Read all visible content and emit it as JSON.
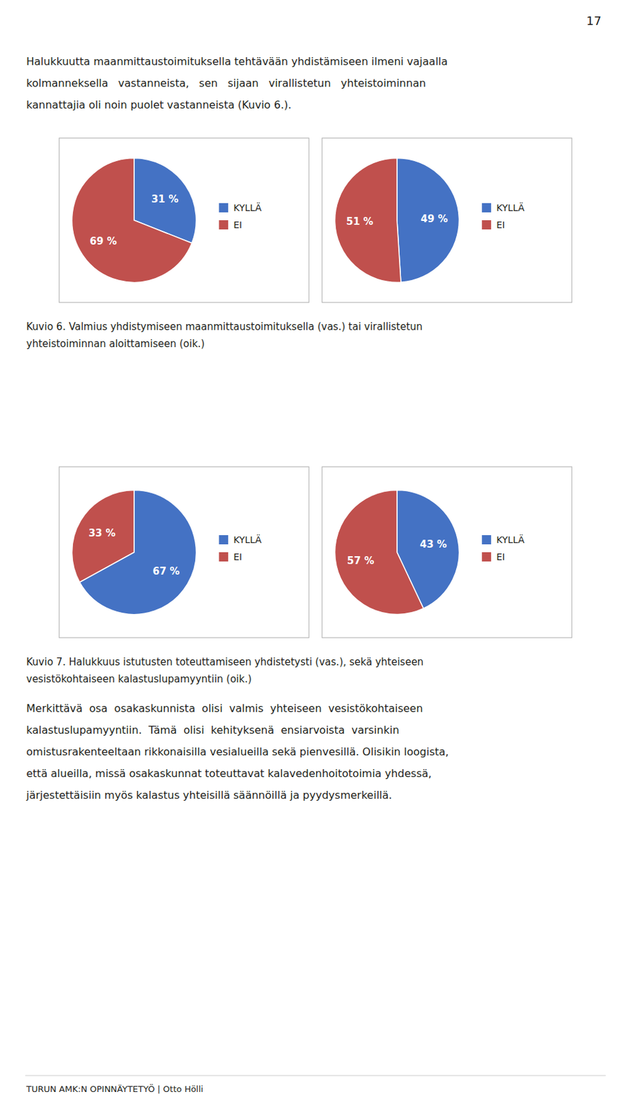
{
  "page_number": "17",
  "paragraphs": [
    [
      "Halukkuutta maanmittaustoimituksella tehtävään yhdistämiseen ilmeni vajaalla",
      "kolmanneksella   vastanneista,   sen   sijaan   virallistetun   yhteistoiminnan",
      "kannattajia oli noin puolet vastanneista (Kuvio 6.)."
    ],
    [
      "Merkittävä  osa  osakaskunnista  olisi  valmis  yhteiseen  vesistökohtaiseen",
      "kalastuslupamyyntiin.  Tämä  olisi  kehityksenä  ensiarvoista  varsinkin",
      "omistusrakenteeltaan rikkonaisilla vesialueilla sekä pienvesillä. Olisikin loogista,",
      "että alueilla, missä osakaskunnat toteuttavat kalavedenhoitotoimia yhdessä,",
      "järjestettäisiin myös kalastus yhteisillä säännöillä ja pyydysmerkeillä."
    ]
  ],
  "captions": [
    [
      "Kuvio 6. Valmius yhdistymiseen maanmittaustoimituksella (vas.) tai virallistetun",
      "yhteistoiminnan aloittamiseen (oik.)"
    ],
    [
      "Kuvio 7. Halukkuus istutusten toteuttamiseen yhdistetysti (vas.), sekä yhteiseen",
      "vesistökohtaiseen kalastuslupamyyntiin (oik.)"
    ]
  ],
  "footer": "TURUN AMK:N OPINNÄYTETYÖ | Otto Hölli",
  "chart_data": [
    {
      "type": "pie",
      "categories": [
        "KYLLÄ",
        "EI"
      ],
      "values": [
        31,
        69
      ],
      "value_labels": [
        "31 %",
        "69 %"
      ],
      "colors": [
        "#4472C4",
        "#C0504D"
      ],
      "data_labels": true,
      "legend": "right"
    },
    {
      "type": "pie",
      "categories": [
        "KYLLÄ",
        "EI"
      ],
      "values": [
        49,
        51
      ],
      "value_labels": [
        "49 %",
        "51 %"
      ],
      "colors": [
        "#4472C4",
        "#C0504D"
      ],
      "data_labels": true,
      "legend": "right"
    },
    {
      "type": "pie",
      "categories": [
        "KYLLÄ",
        "EI"
      ],
      "values": [
        67,
        33
      ],
      "value_labels": [
        "67 %",
        "33 %"
      ],
      "colors": [
        "#4472C4",
        "#C0504D"
      ],
      "data_labels": true,
      "legend": "right"
    },
    {
      "type": "pie",
      "categories": [
        "KYLLÄ",
        "EI"
      ],
      "values": [
        43,
        57
      ],
      "value_labels": [
        "43 %",
        "57 %"
      ],
      "colors": [
        "#4472C4",
        "#C0504D"
      ],
      "data_labels": true,
      "legend": "right"
    }
  ]
}
